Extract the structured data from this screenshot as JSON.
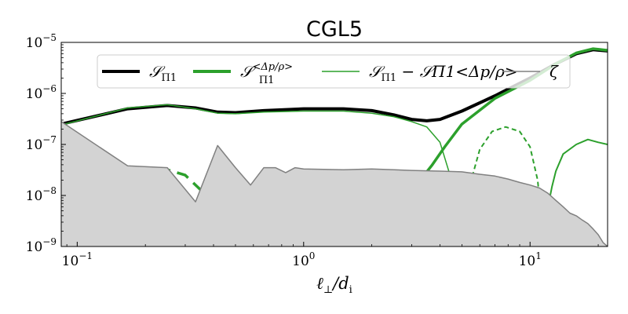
{
  "chart_data": {
    "type": "line",
    "title": "CGL5",
    "xlabel": "ℓ⊥/di",
    "ylabel": "",
    "xscale": "log",
    "yscale": "log",
    "xlim": [
      0.085,
      22
    ],
    "ylim": [
      1e-09,
      1e-05
    ],
    "x_ticks": [
      {
        "value": 0.1,
        "base": "10",
        "exp": "−1"
      },
      {
        "value": 1,
        "base": "10",
        "exp": "0"
      },
      {
        "value": 10,
        "base": "10",
        "exp": "1"
      }
    ],
    "y_ticks": [
      {
        "value": 1e-09,
        "base": "10",
        "exp": "−9"
      },
      {
        "value": 1e-08,
        "base": "10",
        "exp": "−8"
      },
      {
        "value": 1e-07,
        "base": "10",
        "exp": "−7"
      },
      {
        "value": 1e-06,
        "base": "10",
        "exp": "−6"
      },
      {
        "value": 1e-05,
        "base": "10",
        "exp": "−5"
      }
    ],
    "grid": false,
    "legend_position": "top",
    "legend": [
      {
        "label": "𝒮",
        "sub": "Π1",
        "sup": "",
        "extra": "",
        "color": "#000000",
        "width": 4
      },
      {
        "label": "𝒮",
        "sub": "Π1",
        "sup": "<Δp/ρ>",
        "extra": "",
        "color": "#2ca02c",
        "width": 4
      },
      {
        "label": "𝒮",
        "sub": "Π1",
        "sup": "",
        "extra": "− 𝒮Π1<Δp/ρ>",
        "color": "#2ca02c",
        "width": 1.5
      },
      {
        "label": "ζ",
        "sub": "",
        "sup": "",
        "extra": "",
        "color": "#808080",
        "width": 1.5
      }
    ],
    "series": [
      {
        "name": "S_Pi1",
        "color": "#000000",
        "width": 4,
        "points": [
          [
            0.085,
            2.5e-07
          ],
          [
            0.167,
            5e-07
          ],
          [
            0.25,
            5.8e-07
          ],
          [
            0.333,
            5.2e-07
          ],
          [
            0.417,
            4.3e-07
          ],
          [
            0.5,
            4.2e-07
          ],
          [
            0.667,
            4.6e-07
          ],
          [
            1.0,
            5e-07
          ],
          [
            1.5,
            5e-07
          ],
          [
            2.0,
            4.6e-07
          ],
          [
            2.5,
            3.8e-07
          ],
          [
            3.0,
            3.1e-07
          ],
          [
            3.5,
            2.9e-07
          ],
          [
            4.0,
            3.1e-07
          ],
          [
            5.0,
            4.5e-07
          ],
          [
            7.0,
            9e-07
          ],
          [
            10.0,
            2e-06
          ],
          [
            13.0,
            3.8e-06
          ],
          [
            16.0,
            6e-06
          ],
          [
            19.0,
            7.2e-06
          ],
          [
            22.0,
            6.8e-06
          ]
        ]
      },
      {
        "name": "S_Pi1_dp_solid",
        "color": "#2ca02c",
        "width": 3.5,
        "points": [
          [
            0.5,
            1.05e-09
          ],
          [
            0.5,
            1.5e-09
          ],
          [
            0.6,
            2.2e-09
          ],
          [
            0.7,
            3.5e-09
          ],
          [
            0.8,
            6e-09
          ],
          [
            1.0,
            1.4e-08
          ],
          [
            1.2,
            2e-08
          ],
          [
            1.5,
            2.5e-08
          ],
          [
            2.0,
            2.5e-08
          ],
          [
            2.3,
            2.1e-08
          ],
          [
            2.6,
            1.6e-08
          ],
          [
            3.0,
            1.6e-08
          ],
          [
            3.3,
            2.1e-08
          ],
          [
            3.7,
            4e-08
          ],
          [
            4.2,
            9e-08
          ],
          [
            5.0,
            2.5e-07
          ],
          [
            7.0,
            8e-07
          ],
          [
            10.0,
            1.8e-06
          ],
          [
            13.0,
            3.8e-06
          ],
          [
            16.0,
            6.2e-06
          ],
          [
            19.0,
            7.5e-06
          ],
          [
            22.0,
            7e-06
          ]
        ]
      },
      {
        "name": "S_Pi1_dp_neg_low",
        "color": "#2ca02c",
        "width": 3.5,
        "dash": "16,9",
        "points": [
          [
            0.085,
            1.7e-08
          ],
          [
            0.125,
            2.3e-08
          ],
          [
            0.167,
            3.2e-08
          ],
          [
            0.25,
            3.2e-08
          ],
          [
            0.3,
            2.5e-08
          ],
          [
            0.35,
            1.3e-08
          ],
          [
            0.38,
            6e-09
          ],
          [
            0.4,
            3e-09
          ],
          [
            0.42,
            1.5e-09
          ],
          [
            0.43,
            1.05e-09
          ]
        ]
      },
      {
        "name": "S_Pi1_dp_neg_mid",
        "color": "#2ca02c",
        "width": 2,
        "dash": "6,4",
        "points": [
          [
            5.05,
            1e-09
          ],
          [
            5.2,
            5e-09
          ],
          [
            5.5,
            2e-08
          ],
          [
            6.0,
            8e-08
          ],
          [
            6.8,
            1.8e-07
          ],
          [
            7.8,
            2.2e-07
          ],
          [
            9.0,
            1.8e-07
          ],
          [
            10.0,
            9e-08
          ],
          [
            10.8,
            2e-08
          ],
          [
            11.2,
            4e-09
          ],
          [
            11.4,
            1e-09
          ]
        ]
      },
      {
        "name": "S_Pi1_dp_high",
        "color": "#2ca02c",
        "width": 2,
        "points": [
          [
            11.8,
            1e-09
          ],
          [
            12.0,
            6e-09
          ],
          [
            12.5,
            1.5e-08
          ],
          [
            13.0,
            3e-08
          ],
          [
            14.0,
            6.5e-08
          ],
          [
            16.0,
            1e-07
          ],
          [
            18.0,
            1.25e-07
          ],
          [
            20.0,
            1.1e-07
          ],
          [
            22.0,
            1e-07
          ]
        ]
      },
      {
        "name": "difference",
        "color": "#2ca02c",
        "width": 1.5,
        "points": [
          [
            0.085,
            2.4e-07
          ],
          [
            0.167,
            5.2e-07
          ],
          [
            0.25,
            6e-07
          ],
          [
            0.333,
            5e-07
          ],
          [
            0.417,
            4.1e-07
          ],
          [
            0.5,
            4e-07
          ],
          [
            0.667,
            4.3e-07
          ],
          [
            1.0,
            4.5e-07
          ],
          [
            1.5,
            4.5e-07
          ],
          [
            2.0,
            4.1e-07
          ],
          [
            2.5,
            3.5e-07
          ],
          [
            3.0,
            2.8e-07
          ],
          [
            3.5,
            2.2e-07
          ],
          [
            4.0,
            1.1e-07
          ],
          [
            4.5,
            2e-08
          ],
          [
            4.8,
            3e-09
          ],
          [
            4.95,
            1e-09
          ]
        ]
      },
      {
        "name": "zeta",
        "color": "#808080",
        "width": 1.5,
        "fill": "#d3d3d3",
        "points": [
          [
            0.085,
            2.8e-07
          ],
          [
            0.167,
            3.8e-08
          ],
          [
            0.25,
            3.5e-08
          ],
          [
            0.333,
            7.5e-09
          ],
          [
            0.417,
            9.5e-08
          ],
          [
            0.5,
            3.5e-08
          ],
          [
            0.583,
            1.6e-08
          ],
          [
            0.667,
            3.5e-08
          ],
          [
            0.75,
            3.5e-08
          ],
          [
            0.833,
            2.8e-08
          ],
          [
            0.917,
            3.5e-08
          ],
          [
            1.0,
            3.3e-08
          ],
          [
            1.5,
            3.2e-08
          ],
          [
            2.0,
            3.3e-08
          ],
          [
            3.0,
            3.1e-08
          ],
          [
            4.0,
            3e-08
          ],
          [
            5.0,
            2.9e-08
          ],
          [
            6.0,
            2.6e-08
          ],
          [
            7.0,
            2.4e-08
          ],
          [
            8.0,
            2.1e-08
          ],
          [
            9.0,
            1.8e-08
          ],
          [
            10.0,
            1.6e-08
          ],
          [
            11.0,
            1.4e-08
          ],
          [
            12.0,
            1.1e-08
          ],
          [
            13.0,
            8e-09
          ],
          [
            14.0,
            6e-09
          ],
          [
            15.0,
            4.5e-09
          ],
          [
            16.0,
            4e-09
          ],
          [
            17.0,
            3.3e-09
          ],
          [
            18.0,
            2.8e-09
          ],
          [
            19.0,
            2.2e-09
          ],
          [
            20.0,
            1.7e-09
          ],
          [
            21.0,
            1.2e-09
          ],
          [
            22.0,
            1e-09
          ]
        ]
      }
    ]
  }
}
